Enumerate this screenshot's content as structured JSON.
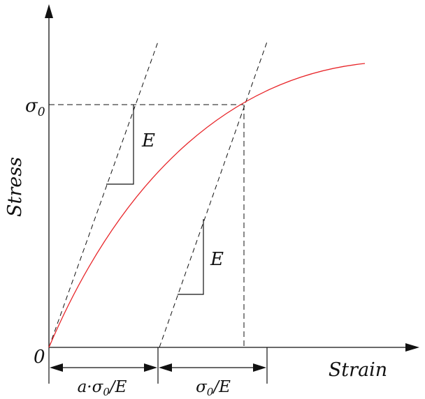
{
  "axes": {
    "y_title": "Stress",
    "x_title": "Strain",
    "origin_label": "0"
  },
  "labels": {
    "sigma0_tick": "σ",
    "sigma0_tick_sub": "0",
    "slope_upper": "E",
    "slope_lower": "E"
  },
  "dimensions": {
    "left": {
      "pre": "a·σ",
      "sub": "0",
      "post": "/E"
    },
    "right": {
      "pre": "σ",
      "sub": "0",
      "post": "/E"
    }
  },
  "colors": {
    "curve": "#e8262a",
    "ink": "#111111"
  }
}
